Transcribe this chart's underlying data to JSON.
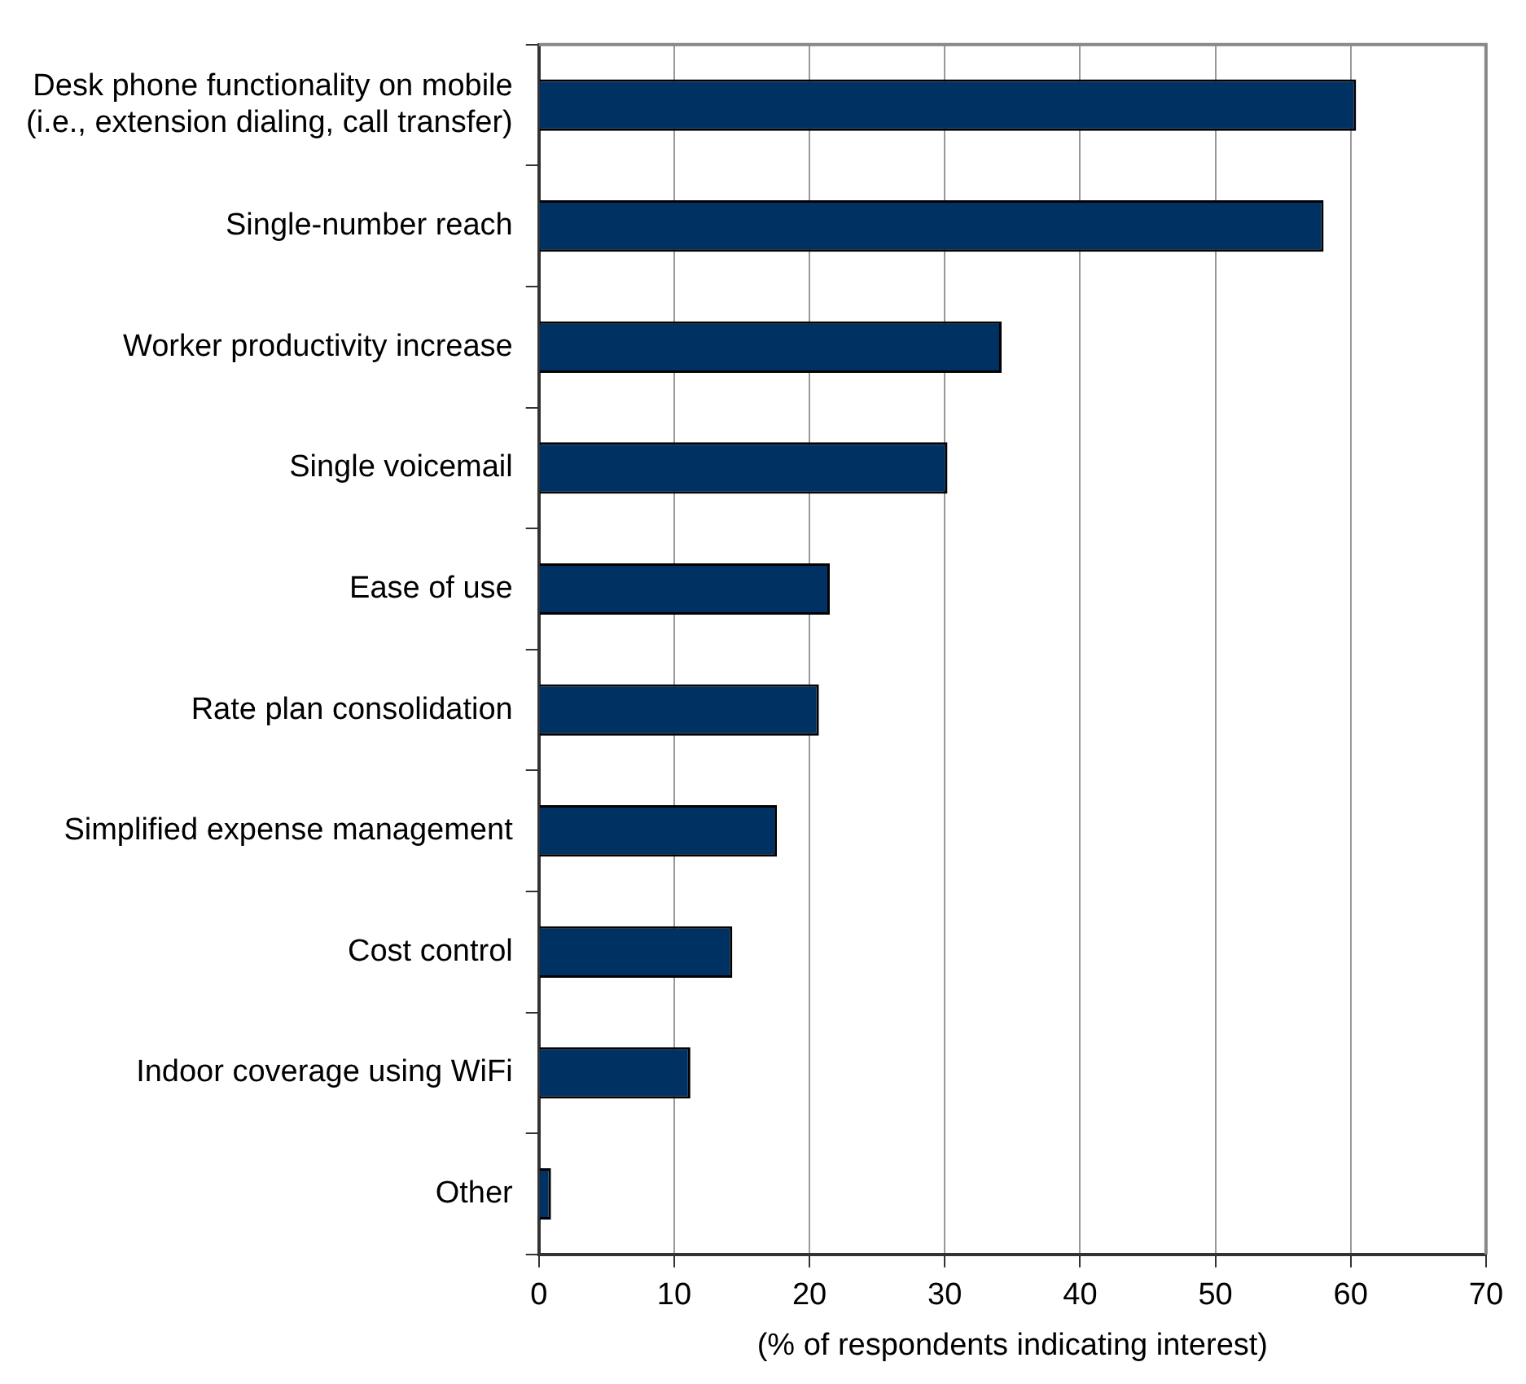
{
  "chart_data": {
    "type": "bar",
    "orientation": "horizontal",
    "xlabel": "(% of respondents indicating interest)",
    "categories": [
      "Desk phone functionality on mobile\n(i.e., extension dialing, call transfer)",
      "Single-number reach",
      "Worker productivity increase",
      "Single voicemail",
      "Ease of use",
      "Rate plan consolidation",
      "Simplified expense management",
      "Cost control",
      "Indoor coverage using WiFi",
      "Other"
    ],
    "values": [
      60.4,
      58.0,
      34.2,
      30.2,
      21.5,
      20.7,
      17.6,
      14.3,
      11.2,
      0.9
    ],
    "color": "#003163",
    "xlim": [
      0,
      70
    ],
    "xticks": [
      0,
      10,
      20,
      30,
      40,
      50,
      60,
      70
    ],
    "grid": "x",
    "legend": false
  }
}
